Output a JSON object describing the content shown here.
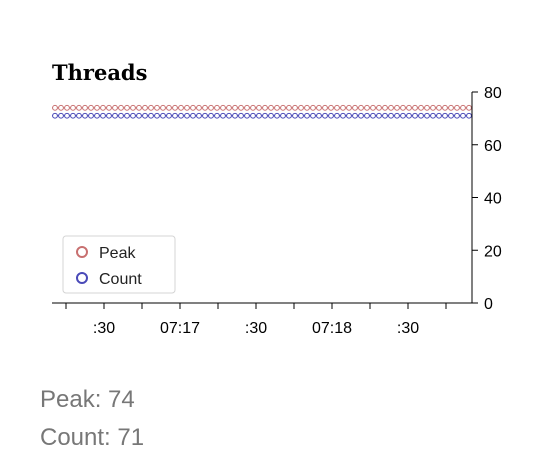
{
  "chart_data": {
    "type": "line",
    "title": "Threads",
    "x_tick_labels": [
      ":30",
      "07:17",
      ":30",
      "07:18",
      ":30"
    ],
    "y_ticks": [
      0,
      20,
      40,
      60,
      80
    ],
    "ylim": [
      0,
      80
    ],
    "grid": false,
    "legend_placement": "bottom-left",
    "point_count": 70,
    "series": [
      {
        "name": "Peak",
        "value": 74,
        "color": "#c87070"
      },
      {
        "name": "Count",
        "value": 71,
        "color": "#4a4ab8"
      }
    ]
  },
  "stats": {
    "peak": "Peak: 74",
    "count": "Count: 71"
  }
}
